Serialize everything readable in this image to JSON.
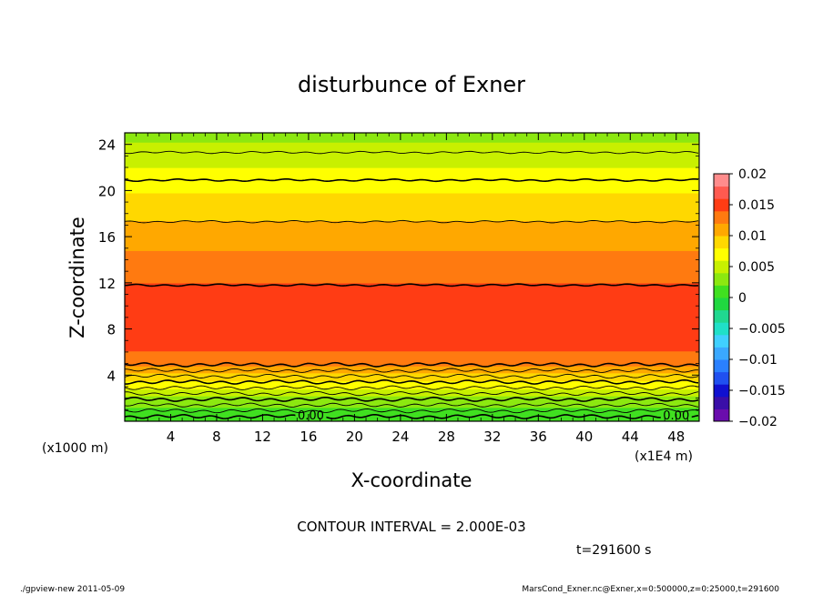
{
  "chart_data": {
    "type": "heatmap",
    "title": "disturbunce of Exner",
    "xlabel": "X-coordinate",
    "ylabel": "Z-coordinate",
    "x_unit_label": "(x1E4 m)",
    "y_unit_label": "(x1000 m)",
    "xlim": [
      0,
      50
    ],
    "ylim": [
      0,
      25
    ],
    "x_ticks": [
      {
        "value": 4,
        "label": "4"
      },
      {
        "value": 8,
        "label": "8"
      },
      {
        "value": 12,
        "label": "12"
      },
      {
        "value": 16,
        "label": "16"
      },
      {
        "value": 20,
        "label": "20"
      },
      {
        "value": 24,
        "label": "24"
      },
      {
        "value": 28,
        "label": "28"
      },
      {
        "value": 32,
        "label": "32"
      },
      {
        "value": 36,
        "label": "36"
      },
      {
        "value": 40,
        "label": "40"
      },
      {
        "value": 44,
        "label": "44"
      },
      {
        "value": 48,
        "label": "48"
      }
    ],
    "y_ticks": [
      {
        "value": 4,
        "label": "4"
      },
      {
        "value": 8,
        "label": "8"
      },
      {
        "value": 12,
        "label": "12"
      },
      {
        "value": 16,
        "label": "16"
      },
      {
        "value": 20,
        "label": "20"
      },
      {
        "value": 24,
        "label": "24"
      }
    ],
    "colorbar": {
      "min": -0.02,
      "max": 0.02,
      "interval": 0.002,
      "ticks": [
        {
          "value": 0.02,
          "label": "0.02"
        },
        {
          "value": 0.015,
          "label": "0.015"
        },
        {
          "value": 0.01,
          "label": "0.01"
        },
        {
          "value": 0.005,
          "label": "0.005"
        },
        {
          "value": 0,
          "label": "0"
        },
        {
          "value": -0.005,
          "label": "−0.005"
        },
        {
          "value": -0.01,
          "label": "−0.01"
        },
        {
          "value": -0.015,
          "label": "−0.015"
        },
        {
          "value": -0.02,
          "label": "−0.02"
        }
      ],
      "colors": [
        "#6a0dad",
        "#3a0ea8",
        "#1010d0",
        "#2050f0",
        "#2a80ff",
        "#3aa8ff",
        "#40d0ff",
        "#20e0c8",
        "#20d890",
        "#20d840",
        "#40e020",
        "#8ce810",
        "#c8f000",
        "#ffff00",
        "#ffd800",
        "#ffa800",
        "#ff7a10",
        "#ff3c14",
        "#ff5a50",
        "#ff8c8c"
      ]
    },
    "profile": [
      {
        "z": 0.0,
        "value": 0.0005
      },
      {
        "z": 1.0,
        "value": 0.0015
      },
      {
        "z": 2.0,
        "value": 0.0035
      },
      {
        "z": 3.0,
        "value": 0.0065
      },
      {
        "z": 4.0,
        "value": 0.0095
      },
      {
        "z": 5.0,
        "value": 0.0128
      },
      {
        "z": 7.0,
        "value": 0.015
      },
      {
        "z": 8.0,
        "value": 0.0158
      },
      {
        "z": 9.0,
        "value": 0.015
      },
      {
        "z": 12.0,
        "value": 0.014
      },
      {
        "z": 14.0,
        "value": 0.0125
      },
      {
        "z": 16.0,
        "value": 0.0112
      },
      {
        "z": 18.0,
        "value": 0.0095
      },
      {
        "z": 20.0,
        "value": 0.0078
      },
      {
        "z": 22.0,
        "value": 0.006
      },
      {
        "z": 24.0,
        "value": 0.0042
      },
      {
        "z": 25.0,
        "value": 0.0032
      }
    ],
    "contour_lines": [
      {
        "z": 0.4,
        "bold": true,
        "label": "0.00"
      },
      {
        "z": 0.9,
        "bold": false,
        "label": ""
      },
      {
        "z": 1.4,
        "bold": false,
        "label": ""
      },
      {
        "z": 1.9,
        "bold": true,
        "label": ""
      },
      {
        "z": 2.4,
        "bold": false,
        "label": ""
      },
      {
        "z": 2.9,
        "bold": false,
        "label": ""
      },
      {
        "z": 3.4,
        "bold": true,
        "label": ""
      },
      {
        "z": 3.9,
        "bold": false,
        "label": ""
      },
      {
        "z": 4.4,
        "bold": false,
        "label": ""
      },
      {
        "z": 4.9,
        "bold": true,
        "label": ""
      },
      {
        "z": 11.8,
        "bold": true,
        "label": ""
      },
      {
        "z": 17.3,
        "bold": false,
        "label": ""
      },
      {
        "z": 20.9,
        "bold": true,
        "label": ""
      },
      {
        "z": 23.3,
        "bold": false,
        "label": ""
      }
    ],
    "contour_interval_label": "CONTOUR INTERVAL = 2.000E-03",
    "time_label": "t=291600 s"
  },
  "footer": {
    "left": "./gpview-new   2011-05-09",
    "right": "MarsCond_Exner.nc@Exner,x=0:500000,z=0:25000,t=291600"
  }
}
